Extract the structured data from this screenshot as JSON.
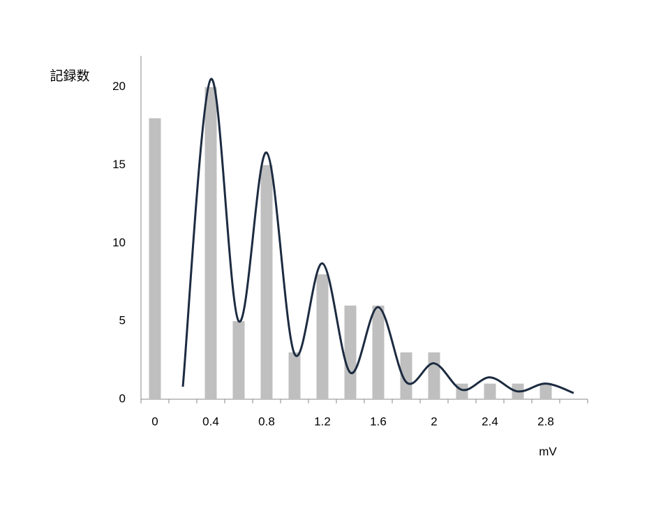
{
  "chart_data": {
    "type": "bar-line",
    "y_label": "記録数",
    "x_label": "mV",
    "categories": [
      "0",
      null,
      "0.4",
      null,
      "0.8",
      null,
      "1.2",
      null,
      "1.6",
      null,
      "2",
      null,
      "2.4",
      null,
      "2.8",
      null
    ],
    "series": [
      {
        "type": "bar",
        "color": "#bfbfbf",
        "values": [
          18,
          0,
          20,
          5,
          15,
          3,
          8,
          6,
          6,
          3,
          3,
          1,
          1,
          1,
          1,
          0
        ]
      },
      {
        "type": "line",
        "color": "#1c2b40",
        "values": [
          null,
          0.8,
          20.5,
          5.0,
          15.8,
          2.9,
          8.7,
          1.7,
          5.9,
          1.1,
          2.3,
          0.6,
          1.4,
          0.5,
          1.0,
          0.4
        ]
      }
    ],
    "ylim": [
      0,
      22
    ],
    "yticks": [
      0,
      5,
      10,
      15,
      20
    ],
    "grid": false
  }
}
